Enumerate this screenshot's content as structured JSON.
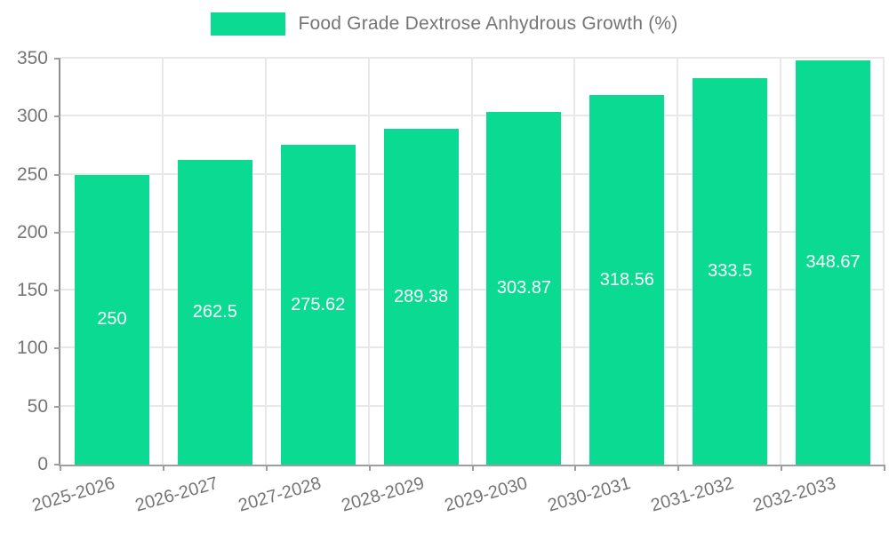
{
  "legend": {
    "label": "Food Grade Dextrose Anhydrous Growth (%)"
  },
  "colors": {
    "bar": "#0bda92",
    "grid": "#e8e8e8",
    "axis": "#9e9e9e",
    "tick_text": "#757575",
    "value_label": "#ffffff",
    "background": "#ffffff"
  },
  "chart_data": {
    "type": "bar",
    "title": "Food Grade Dextrose Anhydrous Growth (%)",
    "xlabel": "",
    "ylabel": "",
    "categories": [
      "2025-2026",
      "2026-2027",
      "2027-2028",
      "2028-2029",
      "2029-2030",
      "2030-2031",
      "2031-2032",
      "2032-2033"
    ],
    "values": [
      250,
      262.5,
      275.62,
      289.38,
      303.87,
      318.56,
      333.5,
      348.67
    ],
    "ylim": [
      0,
      350
    ],
    "yticks": [
      0,
      50,
      100,
      150,
      200,
      250,
      300,
      350
    ],
    "grid": true,
    "legend_position": "top",
    "value_labels": "inside-center",
    "bar_color": "#0bda92"
  }
}
